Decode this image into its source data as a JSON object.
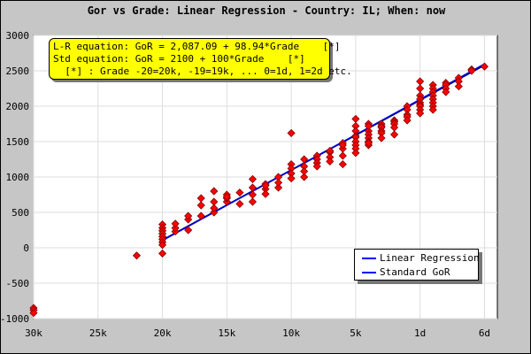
{
  "chart_data": {
    "type": "scatter",
    "title": "Gor vs Grade: Linear Regression - Country: IL; When: now",
    "xlabel": "",
    "ylabel": "",
    "xlim": [
      -30,
      6
    ],
    "ylim": [
      -1000,
      3000
    ],
    "x_ticks": [
      {
        "value": -30,
        "label": "30k"
      },
      {
        "value": -25,
        "label": "25k"
      },
      {
        "value": -20,
        "label": "20k"
      },
      {
        "value": -15,
        "label": "15k"
      },
      {
        "value": -10,
        "label": "10k"
      },
      {
        "value": -5,
        "label": "5k"
      },
      {
        "value": 0,
        "label": "1d"
      },
      {
        "value": 5,
        "label": "6d"
      }
    ],
    "y_ticks": [
      -1000,
      -500,
      0,
      500,
      1000,
      1500,
      2000,
      2500,
      3000
    ],
    "grid": true,
    "annotations": [
      "L-R equation: GoR = 2,087.09 + 98.94*Grade    [*]",
      "Std equation: GoR = 2100 + 100*Grade    [*]",
      "  [*] : Grade -20=20k, -19=19k, ... 0=1d, 1=2d etc."
    ],
    "legend_position": "bottom-right",
    "series": [
      {
        "name": "Linear Regression",
        "kind": "line",
        "x": [
          -20,
          5
        ],
        "y": [
          108.3,
          2581.8
        ]
      },
      {
        "name": "Standard GoR",
        "kind": "line",
        "x": [
          -20,
          5
        ],
        "y": [
          100,
          2600
        ]
      },
      {
        "name": "",
        "kind": "points",
        "x": [
          -30,
          -30,
          -30,
          -22,
          -20,
          -20,
          -20,
          -20,
          -20,
          -20,
          -20,
          -20,
          -20,
          -19,
          -19,
          -19,
          -18,
          -18,
          -18,
          -17,
          -17,
          -17,
          -16,
          -16,
          -16,
          -16,
          -15,
          -15,
          -15,
          -15,
          -14,
          -14,
          -13,
          -13,
          -13,
          -13,
          -12,
          -12,
          -12,
          -12,
          -11,
          -11,
          -11,
          -10,
          -10,
          -10,
          -10,
          -10,
          -9,
          -9,
          -9,
          -9,
          -8,
          -8,
          -8,
          -8,
          -7,
          -7,
          -7,
          -7,
          -6,
          -6,
          -6,
          -6,
          -6,
          -5,
          -5,
          -5,
          -5,
          -5,
          -5,
          -5,
          -5,
          -5,
          -4,
          -4,
          -4,
          -4,
          -4,
          -4,
          -4,
          -4,
          -3,
          -3,
          -3,
          -3,
          -3,
          -3,
          -2,
          -2,
          -2,
          -2,
          -2,
          -1,
          -1,
          -1,
          -1,
          -1,
          0,
          0,
          0,
          0,
          0,
          0,
          0,
          0,
          0,
          1,
          1,
          1,
          1,
          1,
          1,
          1,
          1,
          2,
          2,
          2,
          2,
          3,
          3,
          3,
          4,
          4,
          5
        ],
        "y": [
          -850,
          -880,
          -920,
          -110,
          330,
          280,
          240,
          200,
          160,
          120,
          80,
          40,
          -80,
          230,
          280,
          340,
          250,
          400,
          450,
          450,
          600,
          700,
          500,
          560,
          650,
          800,
          650,
          700,
          750,
          720,
          780,
          620,
          970,
          850,
          750,
          650,
          900,
          830,
          760,
          880,
          1000,
          850,
          920,
          1620,
          1180,
          1120,
          1050,
          980,
          1150,
          1250,
          1000,
          1080,
          1300,
          1250,
          1200,
          1150,
          1350,
          1280,
          1220,
          1370,
          1480,
          1400,
          1300,
          1450,
          1180,
          1820,
          1720,
          1650,
          1580,
          1560,
          1500,
          1450,
          1400,
          1340,
          1650,
          1600,
          1550,
          1500,
          1450,
          1480,
          1750,
          1720,
          1750,
          1720,
          1700,
          1650,
          1620,
          1550,
          1800,
          1780,
          1750,
          1700,
          1600,
          2000,
          1950,
          1880,
          1850,
          1800,
          2350,
          2250,
          2150,
          2100,
          2050,
          2020,
          2000,
          1950,
          1900,
          2300,
          2250,
          2200,
          2150,
          2100,
          2050,
          2000,
          1950,
          2330,
          2300,
          2250,
          2200,
          2400,
          2350,
          2280,
          2520,
          2500,
          2560
        ]
      }
    ]
  }
}
